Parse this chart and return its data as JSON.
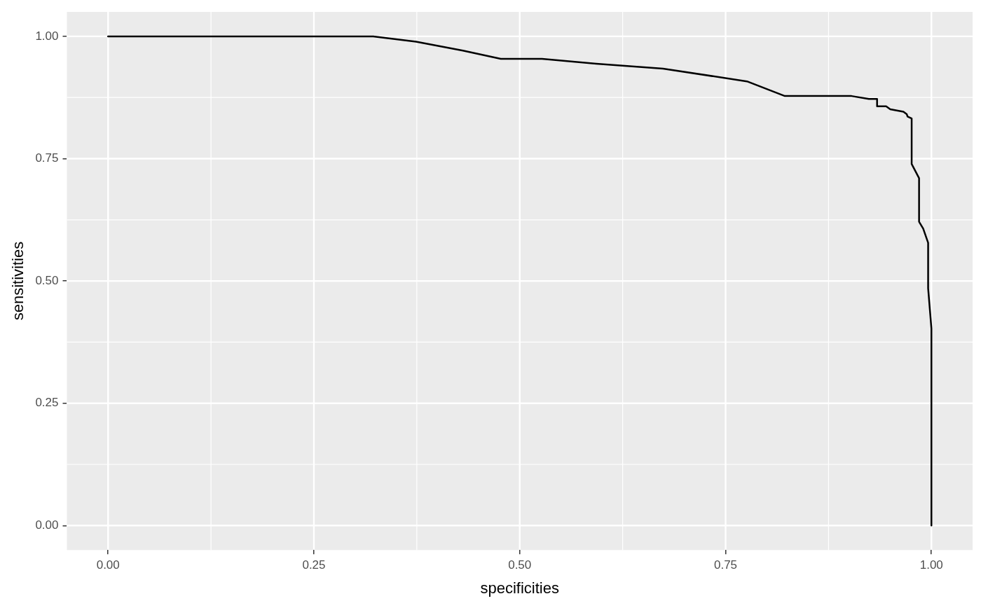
{
  "chart_data": {
    "type": "line",
    "xlabel": "specificities",
    "ylabel": "sensitivities",
    "x": [
      0,
      0.322,
      0.374,
      0.431,
      0.477,
      0.527,
      0.593,
      0.674,
      0.776,
      0.822,
      0.903,
      0.924,
      0.934,
      0.934,
      0.945,
      0.95,
      0.966,
      0.97,
      0.971,
      0.976,
      0.976,
      0.985,
      0.985,
      0.99,
      0.996,
      0.996,
      1,
      1
    ],
    "series": [
      {
        "color": "#000000",
        "values": [
          1,
          1,
          0.989,
          0.971,
          0.954,
          0.954,
          0.944,
          0.934,
          0.908,
          0.878,
          0.878,
          0.872,
          0.872,
          0.857,
          0.857,
          0.851,
          0.846,
          0.841,
          0.836,
          0.832,
          0.739,
          0.71,
          0.621,
          0.607,
          0.578,
          0.485,
          0.403,
          0
        ]
      }
    ],
    "xlim": [
      -0.05,
      1.05
    ],
    "ylim": [
      -0.05,
      1.05
    ],
    "xticks": [
      {
        "value": 0,
        "label": "0.00"
      },
      {
        "value": 0.25,
        "label": "0.25"
      },
      {
        "value": 0.5,
        "label": "0.50"
      },
      {
        "value": 0.75,
        "label": "0.75"
      },
      {
        "value": 1,
        "label": "1.00"
      }
    ],
    "yticks": [
      {
        "value": 0,
        "label": "0.00"
      },
      {
        "value": 0.25,
        "label": "0.25"
      },
      {
        "value": 0.5,
        "label": "0.50"
      },
      {
        "value": 0.75,
        "label": "0.75"
      },
      {
        "value": 1,
        "label": "1.00"
      }
    ],
    "grid": true,
    "legend": false,
    "marker": "none",
    "line_style": "solid"
  }
}
